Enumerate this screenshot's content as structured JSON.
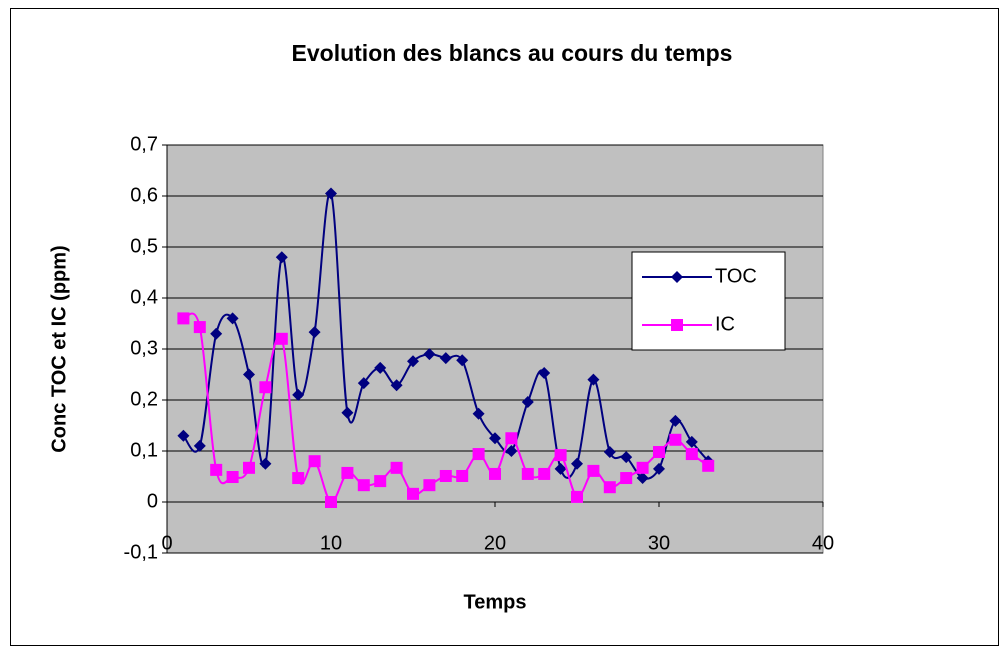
{
  "chart_data": {
    "type": "line",
    "title": "Evolution des blancs au cours du temps",
    "x_label": "Temps",
    "y_label": "Conc TOC et IC (ppm)",
    "x": [
      1,
      2,
      3,
      4,
      5,
      6,
      7,
      8,
      9,
      10,
      11,
      12,
      13,
      14,
      15,
      16,
      17,
      18,
      19,
      20,
      21,
      22,
      23,
      24,
      25,
      26,
      27,
      28,
      29,
      30,
      31,
      32,
      33
    ],
    "series": [
      {
        "name": "TOC",
        "color": "#000080",
        "marker": "diamond",
        "values": [
          0.13,
          0.11,
          0.33,
          0.36,
          0.25,
          0.075,
          0.48,
          0.21,
          0.333,
          0.605,
          0.175,
          0.233,
          0.263,
          0.229,
          0.276,
          0.29,
          0.282,
          0.278,
          0.173,
          0.125,
          0.1,
          0.196,
          0.253,
          0.065,
          0.075,
          0.24,
          0.098,
          0.088,
          0.047,
          0.065,
          0.159,
          0.118,
          0.08
        ]
      },
      {
        "name": "IC",
        "color": "#ff00ff",
        "marker": "square",
        "values": [
          0.36,
          0.343,
          0.063,
          0.049,
          0.067,
          0.225,
          0.32,
          0.047,
          0.08,
          0,
          0.057,
          0.033,
          0.041,
          0.067,
          0.016,
          0.033,
          0.051,
          0.051,
          0.094,
          0.055,
          0.125,
          0.055,
          0.055,
          0.092,
          0.01,
          0.061,
          0.029,
          0.047,
          0.067,
          0.098,
          0.122,
          0.094,
          0.071
        ]
      }
    ],
    "xlim": [
      0,
      40
    ],
    "xticks": [
      0,
      10,
      20,
      30,
      40
    ],
    "ylim": [
      -0.1,
      0.7
    ],
    "yticks": [
      {
        "value": -0.1,
        "label": "-0,1"
      },
      0,
      {
        "value": 0.1,
        "label": "0,1"
      },
      {
        "value": 0.2,
        "label": "0,2"
      },
      {
        "value": 0.3,
        "label": "0,3"
      },
      {
        "value": 0.4,
        "label": "0,4"
      },
      {
        "value": 0.5,
        "label": "0,5"
      },
      {
        "value": 0.6,
        "label": "0,6"
      },
      {
        "value": 0.7,
        "label": "0,7"
      }
    ],
    "grid": true,
    "smooth": true,
    "legend": "right",
    "plot_background": "#c0c0c0"
  }
}
